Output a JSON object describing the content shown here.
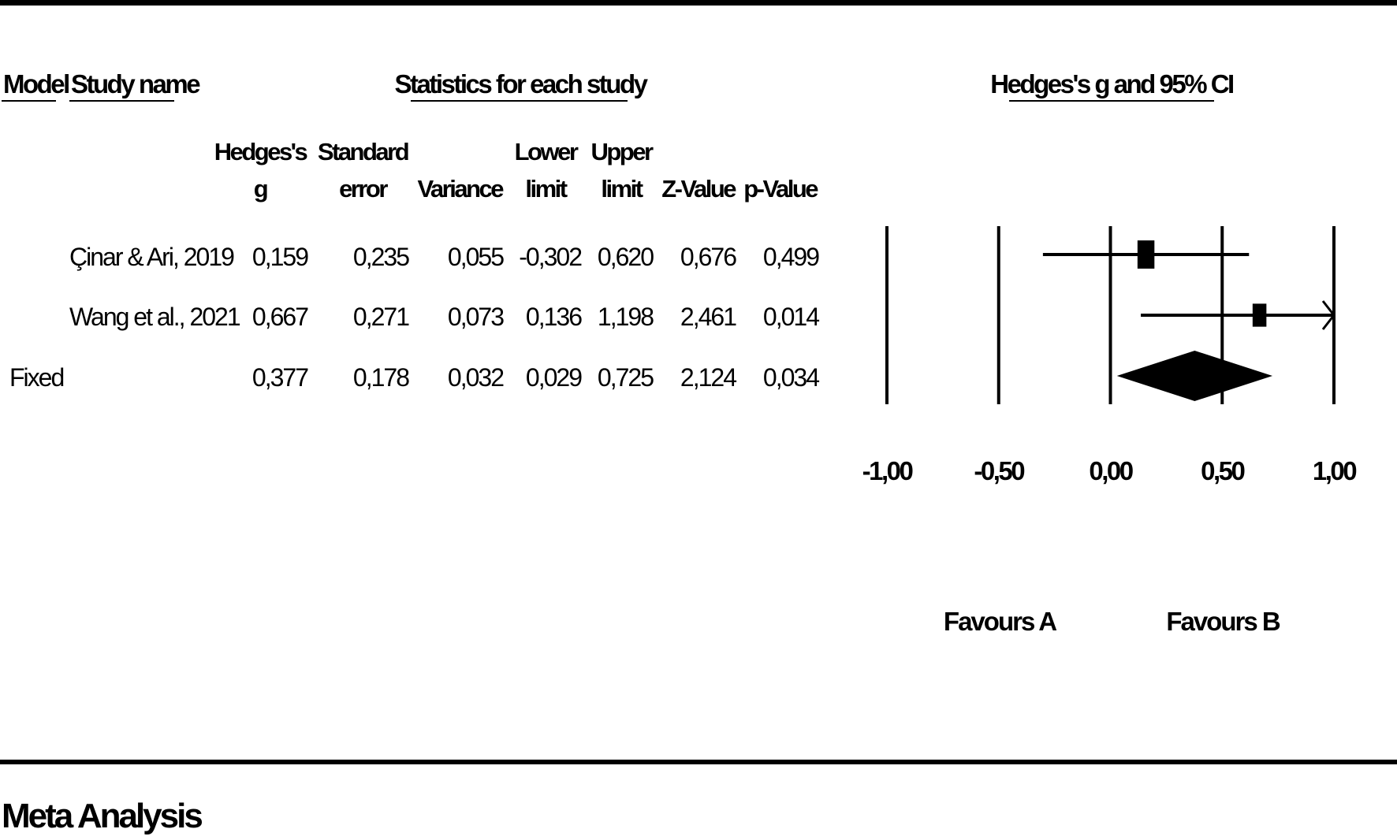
{
  "headers": {
    "model": "Model",
    "study_name": "Study name",
    "statistics": "Statistics for each study",
    "plot": "Hedges's g and 95% CI"
  },
  "columns": [
    {
      "key": "g",
      "lines": [
        "Hedges's",
        "g"
      ]
    },
    {
      "key": "se",
      "lines": [
        "Standard",
        "error"
      ]
    },
    {
      "key": "var",
      "lines": [
        "Variance"
      ]
    },
    {
      "key": "lower",
      "lines": [
        "Lower",
        "limit"
      ]
    },
    {
      "key": "upper",
      "lines": [
        "Upper",
        "limit"
      ]
    },
    {
      "key": "z",
      "lines": [
        "Z-Value"
      ]
    },
    {
      "key": "p",
      "lines": [
        "p-Value"
      ]
    }
  ],
  "rows": [
    {
      "model": "",
      "study": "Çinar & Ari, 2019",
      "g": "0,159",
      "se": "0,235",
      "var": "0,055",
      "lower": "-0,302",
      "upper": "0,620",
      "z": "0,676",
      "p": "0,499"
    },
    {
      "model": "",
      "study": "Wang et al., 2021",
      "g": "0,667",
      "se": "0,271",
      "var": "0,073",
      "lower": "0,136",
      "upper": "1,198",
      "z": "2,461",
      "p": "0,014"
    },
    {
      "model": "Fixed",
      "study": "",
      "g": "0,377",
      "se": "0,178",
      "var": "0,032",
      "lower": "0,029",
      "upper": "0,725",
      "z": "2,124",
      "p": "0,034"
    }
  ],
  "chart_data": {
    "type": "forest",
    "title": "Hedges's g and 95% CI",
    "xlim": [
      -1.0,
      1.0
    ],
    "ticks": [
      -1.0,
      -0.5,
      0.0,
      0.5,
      1.0
    ],
    "tick_labels": [
      "-1,00",
      "-0,50",
      "0,00",
      "0,50",
      "1,00"
    ],
    "studies": [
      {
        "name": "Çinar & Ari, 2019",
        "g": 0.159,
        "lower": -0.302,
        "upper": 0.62,
        "weight": 0.573
      },
      {
        "name": "Wang et al., 2021",
        "g": 0.667,
        "lower": 0.136,
        "upper": 1.198,
        "weight": 0.427
      }
    ],
    "summary": {
      "name": "Fixed",
      "g": 0.377,
      "lower": 0.029,
      "upper": 0.725
    },
    "favours_left": "Favours A",
    "favours_right": "Favours B"
  },
  "footer": "Meta Analysis"
}
